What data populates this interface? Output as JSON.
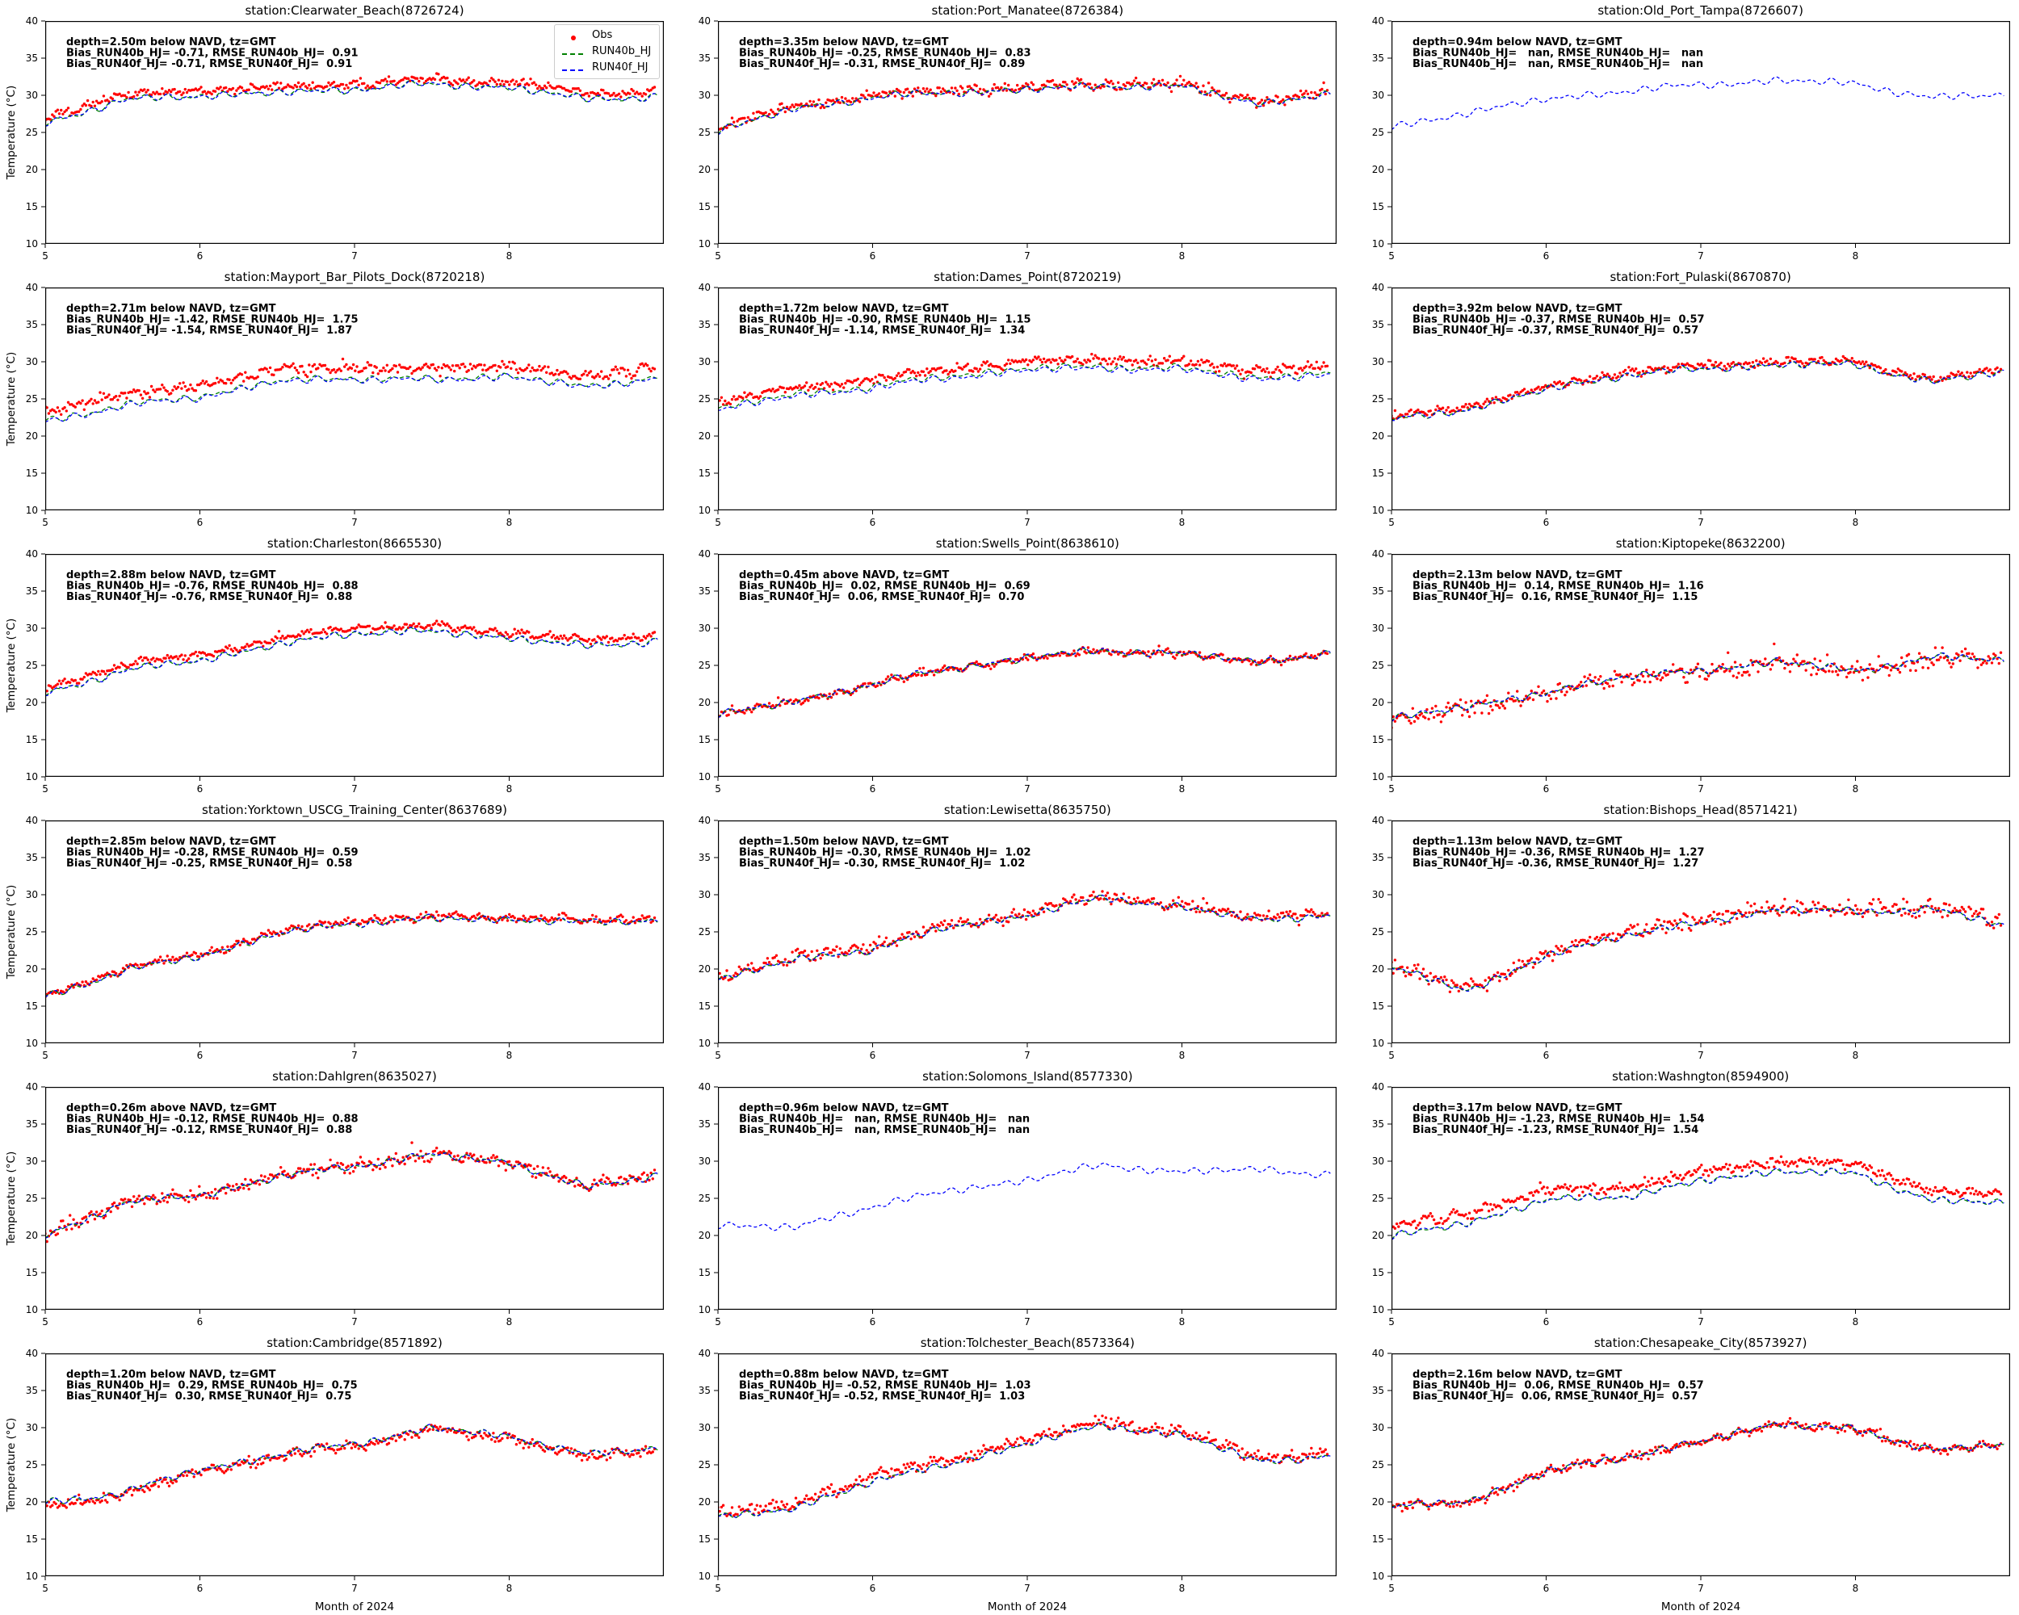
{
  "figure": {
    "ylabel": "Temperature (°C)",
    "xlabel": "Month of 2024",
    "legend": [
      {
        "label": "Obs",
        "marker": "red-dot"
      },
      {
        "label": "RUN40b_HJ",
        "marker": "green-dashed-line"
      },
      {
        "label": "RUN40f_HJ",
        "marker": "blue-dashed-line"
      }
    ],
    "colors": {
      "obs": "#ff0000",
      "run40b": "#008000",
      "run40f": "#0000ff",
      "axes": "#000000"
    }
  },
  "chart_data": {
    "type": "scatter",
    "x_anchors": [
      5,
      5.5,
      6,
      6.5,
      7,
      7.5,
      8,
      8.5,
      9
    ],
    "xlim": [
      5,
      9
    ],
    "ylim": [
      10,
      40
    ],
    "yticks": [
      40,
      35,
      30,
      25,
      20,
      15,
      10
    ],
    "xticks": [
      5,
      6,
      7,
      8
    ],
    "grid": false,
    "stations": [
      {
        "title": "station:Clearwater_Beach(8726724)",
        "ann": [
          "depth=2.50m below NAVD, tz=GMT",
          "Bias_RUN40b_HJ= -0.71, RMSE_RUN40b_HJ=  0.91",
          "Bias_RUN40f_HJ= -0.71, RMSE_RUN40f_HJ=  0.91"
        ],
        "bias_run40b": -0.71,
        "rmse_run40b": 0.91,
        "bias_run40f": -0.71,
        "rmse_run40f": 0.91,
        "obs": [
          27.0,
          30.0,
          30.7,
          31.0,
          31.6,
          32.2,
          31.8,
          30.2,
          30.6
        ],
        "model": null,
        "noise": 0.45
      },
      {
        "title": "station:Port_Manatee(8726384)",
        "ann": [
          "depth=3.35m below NAVD, tz=GMT",
          "Bias_RUN40b_HJ= -0.25, RMSE_RUN40b_HJ=  0.83",
          "Bias_RUN40f_HJ= -0.31, RMSE_RUN40f_HJ=  0.89"
        ],
        "bias_run40b": -0.25,
        "rmse_run40b": 0.83,
        "bias_run40f": -0.31,
        "rmse_run40f": 0.89,
        "obs": [
          25.5,
          28.5,
          30.0,
          30.7,
          31.0,
          31.6,
          31.4,
          29.2,
          30.4
        ],
        "model": null,
        "noise": 0.6
      },
      {
        "title": "station:Old_Port_Tampa(8726607)",
        "ann": [
          "depth=0.94m below NAVD, tz=GMT",
          "Bias_RUN40b_HJ=   nan, RMSE_RUN40b_HJ=   nan",
          "Bias_RUN40b_HJ=   nan, RMSE_RUN40b_HJ=   nan"
        ],
        "bias_run40b": "nan",
        "rmse_run40b": "nan",
        "bias_run40f": "nan",
        "rmse_run40f": "nan",
        "obs": null,
        "model": [
          25.5,
          27.8,
          29.4,
          30.6,
          31.4,
          32.0,
          31.6,
          29.6,
          30.2
        ],
        "noise": 0
      },
      {
        "title": "station:Mayport_Bar_Pilots_Dock(8720218)",
        "ann": [
          "depth=2.71m below NAVD, tz=GMT",
          "Bias_RUN40b_HJ= -1.42, RMSE_RUN40b_HJ=  1.75",
          "Bias_RUN40f_HJ= -1.54, RMSE_RUN40f_HJ=  1.87"
        ],
        "bias_run40b": -1.42,
        "rmse_run40b": 1.75,
        "bias_run40f": -1.54,
        "rmse_run40f": 1.87,
        "obs": [
          23.5,
          25.5,
          26.8,
          28.8,
          29.3,
          29.0,
          29.6,
          28.0,
          29.6
        ],
        "model": null,
        "noise": 0.7
      },
      {
        "title": "station:Dames_Point(8720219)",
        "ann": [
          "depth=1.72m below NAVD, tz=GMT",
          "Bias_RUN40b_HJ= -0.90, RMSE_RUN40b_HJ=  1.15",
          "Bias_RUN40f_HJ= -1.14, RMSE_RUN40f_HJ=  1.34"
        ],
        "bias_run40b": -0.9,
        "rmse_run40b": 1.15,
        "bias_run40f": -1.14,
        "rmse_run40f": 1.34,
        "obs": [
          24.7,
          26.5,
          27.6,
          29.0,
          30.0,
          30.3,
          30.0,
          28.8,
          29.4
        ],
        "model": null,
        "noise": 0.55
      },
      {
        "title": "station:Fort_Pulaski(8670870)",
        "ann": [
          "depth=3.92m below NAVD, tz=GMT",
          "Bias_RUN40b_HJ= -0.37, RMSE_RUN40b_HJ=  0.57",
          "Bias_RUN40f_HJ= -0.37, RMSE_RUN40f_HJ=  0.57"
        ],
        "bias_run40b": -0.37,
        "rmse_run40b": 0.57,
        "bias_run40f": -0.37,
        "rmse_run40f": 0.57,
        "obs": [
          22.5,
          24.0,
          26.6,
          28.6,
          29.4,
          30.0,
          30.0,
          27.6,
          29.2
        ],
        "model": null,
        "noise": 0.45
      },
      {
        "title": "station:Charleston(8665530)",
        "ann": [
          "depth=2.88m below NAVD, tz=GMT",
          "Bias_RUN40b_HJ= -0.76, RMSE_RUN40b_HJ=  0.88",
          "Bias_RUN40f_HJ= -0.76, RMSE_RUN40f_HJ=  0.88"
        ],
        "bias_run40b": -0.76,
        "rmse_run40b": 0.88,
        "bias_run40f": -0.76,
        "rmse_run40f": 0.88,
        "obs": [
          22.0,
          25.0,
          26.5,
          28.5,
          30.2,
          30.3,
          29.5,
          28.3,
          29.2
        ],
        "model": null,
        "noise": 0.4
      },
      {
        "title": "station:Swells_Point(8638610)",
        "ann": [
          "depth=0.45m above NAVD, tz=GMT",
          "Bias_RUN40b_HJ=  0.02, RMSE_RUN40b_HJ=  0.69",
          "Bias_RUN40f_HJ=  0.06, RMSE_RUN40f_HJ=  0.70"
        ],
        "bias_run40b": 0.02,
        "rmse_run40b": 0.69,
        "bias_run40f": 0.06,
        "rmse_run40f": 0.7,
        "obs": [
          18.5,
          20.0,
          22.5,
          24.5,
          26.0,
          27.0,
          26.5,
          25.5,
          26.5
        ],
        "model": null,
        "noise": 0.45
      },
      {
        "title": "station:Kiptopeke(8632200)",
        "ann": [
          "depth=2.13m below NAVD, tz=GMT",
          "Bias_RUN40b_HJ=  0.14, RMSE_RUN40b_HJ=  1.16",
          "Bias_RUN40f_HJ=  0.16, RMSE_RUN40f_HJ=  1.15"
        ],
        "bias_run40b": 0.14,
        "rmse_run40b": 1.16,
        "bias_run40f": 0.16,
        "rmse_run40f": 1.15,
        "obs": [
          17.5,
          19.5,
          21.0,
          23.5,
          24.0,
          25.5,
          24.0,
          26.0,
          25.5
        ],
        "model": null,
        "noise": 1.1
      },
      {
        "title": "station:Yorktown_USCG_Training_Center(8637689)",
        "ann": [
          "depth=2.85m below NAVD, tz=GMT",
          "Bias_RUN40b_HJ= -0.28, RMSE_RUN40b_HJ=  0.59",
          "Bias_RUN40f_HJ= -0.25, RMSE_RUN40f_HJ=  0.58"
        ],
        "bias_run40b": -0.28,
        "rmse_run40b": 0.59,
        "bias_run40f": -0.25,
        "rmse_run40f": 0.58,
        "obs": [
          16.5,
          20.0,
          22.0,
          25.0,
          26.5,
          27.0,
          27.0,
          26.5,
          27.0
        ],
        "model": null,
        "noise": 0.45
      },
      {
        "title": "station:Lewisetta(8635750)",
        "ann": [
          "depth=1.50m below NAVD, tz=GMT",
          "Bias_RUN40b_HJ= -0.30, RMSE_RUN40b_HJ=  1.02",
          "Bias_RUN40f_HJ= -0.30, RMSE_RUN40f_HJ=  1.02"
        ],
        "bias_run40b": -0.3,
        "rmse_run40b": 1.02,
        "bias_run40f": -0.3,
        "rmse_run40f": 1.02,
        "obs": [
          19.0,
          21.5,
          23.0,
          26.0,
          27.5,
          30.0,
          28.5,
          27.0,
          27.5
        ],
        "model": null,
        "noise": 0.7
      },
      {
        "title": "station:Bishops_Head(8571421)",
        "ann": [
          "depth=1.13m below NAVD, tz=GMT",
          "Bias_RUN40b_HJ= -0.36, RMSE_RUN40b_HJ=  1.27",
          "Bias_RUN40f_HJ= -0.36, RMSE_RUN40f_HJ=  1.27"
        ],
        "bias_run40b": -0.36,
        "rmse_run40b": 1.27,
        "bias_run40f": -0.36,
        "rmse_run40f": 1.27,
        "obs": [
          20.5,
          17.5,
          22.0,
          25.0,
          26.5,
          28.5,
          28.0,
          28.5,
          26.0
        ],
        "model": null,
        "noise": 1.0
      },
      {
        "title": "station:Dahlgren(8635027)",
        "ann": [
          "depth=0.26m above NAVD, tz=GMT",
          "Bias_RUN40b_HJ= -0.12, RMSE_RUN40b_HJ=  0.88",
          "Bias_RUN40f_HJ= -0.12, RMSE_RUN40f_HJ=  0.88"
        ],
        "bias_run40b": -0.12,
        "rmse_run40b": 0.88,
        "bias_run40f": -0.12,
        "rmse_run40f": 0.88,
        "obs": [
          20.0,
          24.5,
          25.5,
          28.0,
          29.5,
          31.0,
          30.0,
          26.5,
          28.5
        ],
        "model": null,
        "noise": 0.8
      },
      {
        "title": "station:Solomons_Island(8577330)",
        "ann": [
          "depth=0.96m below NAVD, tz=GMT",
          "Bias_RUN40b_HJ=   nan, RMSE_RUN40b_HJ=   nan",
          "Bias_RUN40b_HJ=   nan, RMSE_RUN40b_HJ=   nan"
        ],
        "bias_run40b": "nan",
        "rmse_run40b": "nan",
        "bias_run40f": "nan",
        "rmse_run40f": "nan",
        "obs": null,
        "model": [
          21.5,
          21.0,
          24.0,
          26.0,
          27.5,
          29.5,
          28.5,
          29.0,
          28.0
        ],
        "noise": 0
      },
      {
        "title": "station:Washngton(8594900)",
        "ann": [
          "depth=3.17m below NAVD, tz=GMT",
          "Bias_RUN40b_HJ= -1.23, RMSE_RUN40b_HJ=  1.54",
          "Bias_RUN40f_HJ= -1.23, RMSE_RUN40f_HJ=  1.54"
        ],
        "bias_run40b": -1.23,
        "rmse_run40b": 1.54,
        "bias_run40f": -1.23,
        "rmse_run40f": 1.54,
        "obs": [
          21.0,
          23.0,
          26.0,
          26.5,
          28.5,
          30.0,
          29.5,
          26.0,
          25.5
        ],
        "model": null,
        "noise": 0.6
      },
      {
        "title": "station:Cambridge(8571892)",
        "ann": [
          "depth=1.20m below NAVD, tz=GMT",
          "Bias_RUN40b_HJ=  0.29, RMSE_RUN40b_HJ=  0.75",
          "Bias_RUN40f_HJ=  0.30, RMSE_RUN40f_HJ=  0.75"
        ],
        "bias_run40b": 0.29,
        "rmse_run40b": 0.75,
        "bias_run40f": 0.3,
        "rmse_run40f": 0.75,
        "obs": [
          19.5,
          21.0,
          24.0,
          26.0,
          27.6,
          29.6,
          28.6,
          26.0,
          27.2
        ],
        "model": null,
        "noise": 0.6
      },
      {
        "title": "station:Tolchester_Beach(8573364)",
        "ann": [
          "depth=0.88m below NAVD, tz=GMT",
          "Bias_RUN40b_HJ= -0.52, RMSE_RUN40b_HJ=  1.03",
          "Bias_RUN40f_HJ= -0.52, RMSE_RUN40f_HJ=  1.03"
        ],
        "bias_run40b": -0.52,
        "rmse_run40b": 1.03,
        "bias_run40f": -0.52,
        "rmse_run40f": 1.03,
        "obs": [
          18.7,
          19.5,
          23.5,
          25.5,
          28.5,
          30.8,
          29.5,
          26.0,
          26.8
        ],
        "model": null,
        "noise": 0.7
      },
      {
        "title": "station:Chesapeake_City(8573927)",
        "ann": [
          "depth=2.16m below NAVD, tz=GMT",
          "Bias_RUN40b_HJ=  0.06, RMSE_RUN40b_HJ=  0.57",
          "Bias_RUN40f_HJ=  0.06, RMSE_RUN40f_HJ=  0.57"
        ],
        "bias_run40b": 0.06,
        "rmse_run40b": 0.57,
        "bias_run40f": 0.06,
        "rmse_run40f": 0.57,
        "obs": [
          19.3,
          20.0,
          24.0,
          26.0,
          28.0,
          30.6,
          29.6,
          27.0,
          27.6
        ],
        "model": null,
        "noise": 0.55
      }
    ]
  }
}
